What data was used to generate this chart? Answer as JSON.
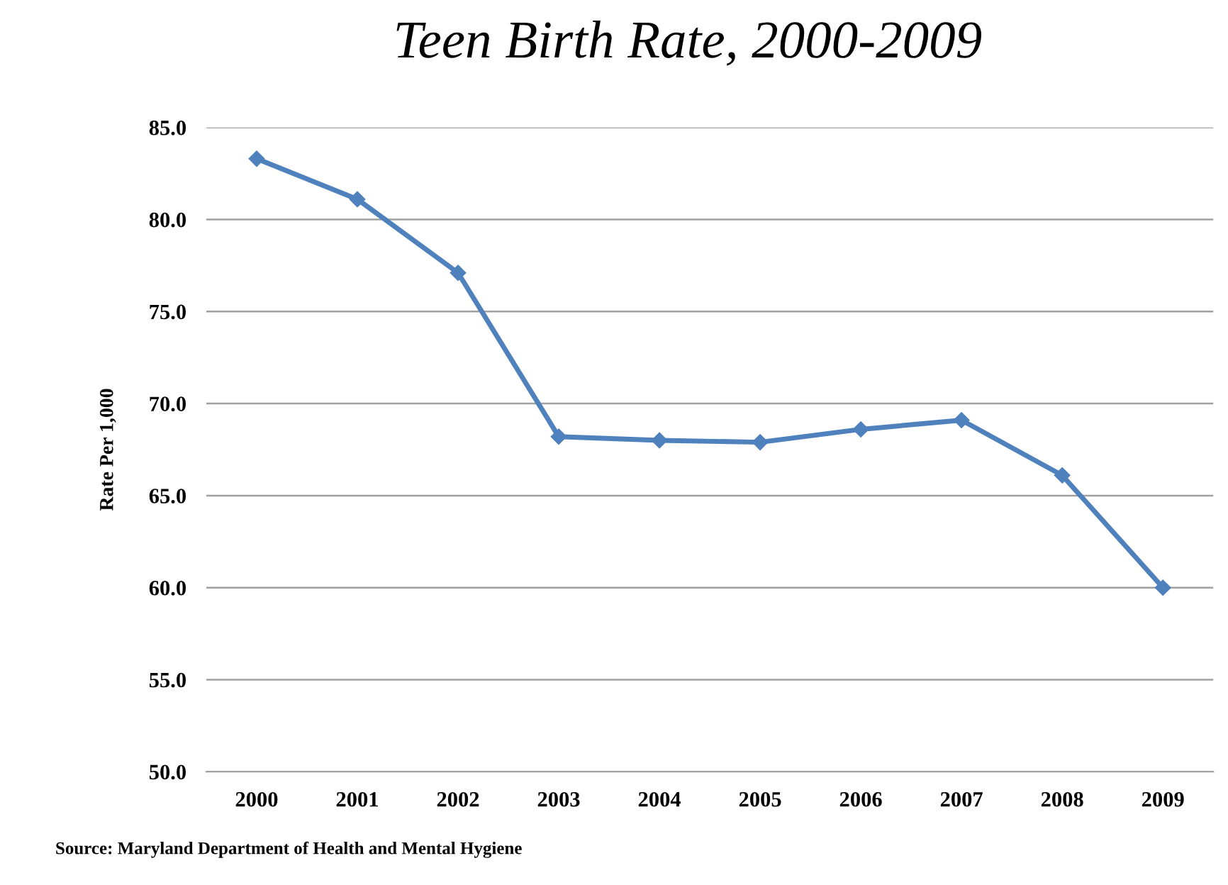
{
  "chart_data": {
    "type": "line",
    "title": "Teen Birth Rate, 2000-2009",
    "ylabel": "Rate Per 1,000",
    "categories": [
      "2000",
      "2001",
      "2002",
      "2003",
      "2004",
      "2005",
      "2006",
      "2007",
      "2008",
      "2009"
    ],
    "series": [
      {
        "color": "#4f81bd",
        "values": [
          83.3,
          81.1,
          77.1,
          68.2,
          68.0,
          67.9,
          68.6,
          69.1,
          66.1,
          60.0
        ]
      }
    ],
    "ylim": [
      50,
      85
    ],
    "yticks": [
      {
        "value": 50,
        "label": "50.0"
      },
      {
        "value": 55,
        "label": "55.0"
      },
      {
        "value": 60,
        "label": "60.0"
      },
      {
        "value": 65,
        "label": "65.0"
      },
      {
        "value": 70,
        "label": "70.0"
      },
      {
        "value": 75,
        "label": "75.0"
      },
      {
        "value": 80,
        "label": "80.0"
      },
      {
        "value": 85,
        "label": "85.0"
      }
    ],
    "grid": "y",
    "marker": "diamond",
    "line_style": "solid",
    "annotations": [
      "Source: Maryland Department of Health and Mental Hygiene"
    ]
  }
}
